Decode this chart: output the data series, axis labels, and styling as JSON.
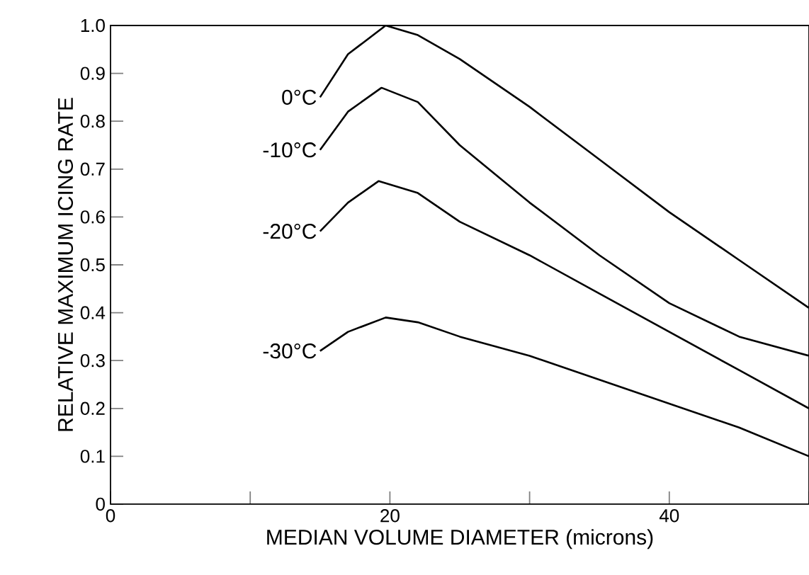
{
  "chart_data": {
    "type": "line",
    "xlabel": "MEDIAN VOLUME DIAMETER (microns)",
    "ylabel": "RELATIVE MAXIMUM ICING RATE",
    "xlim": [
      0,
      50
    ],
    "ylim": [
      0,
      1
    ],
    "xticks": [
      0,
      {
        "value": 10,
        "label": null
      },
      20,
      {
        "value": 30,
        "label": null
      },
      40,
      {
        "value": 50,
        "label": null
      }
    ],
    "yticks": [
      0,
      0.1,
      0.2,
      0.3,
      0.4,
      0.5,
      0.6,
      0.7,
      0.8,
      0.9,
      {
        "value": 1,
        "label": "1.0"
      }
    ],
    "grid": false,
    "legend": false,
    "marker": "none",
    "line_style": "solid",
    "series": [
      {
        "name": "0°C",
        "color": "#000000",
        "x": [
          15,
          17,
          19.7,
          22,
          25,
          30,
          35,
          40,
          45,
          50
        ],
        "values": [
          0.85,
          0.94,
          1.0,
          0.98,
          0.93,
          0.83,
          0.72,
          0.61,
          0.51,
          0.41
        ]
      },
      {
        "name": "-10°C",
        "color": "#000000",
        "x": [
          15,
          17,
          19.4,
          22,
          25,
          30,
          35,
          40,
          45,
          50
        ],
        "values": [
          0.74,
          0.82,
          0.87,
          0.84,
          0.75,
          0.63,
          0.52,
          0.42,
          0.35,
          0.31
        ]
      },
      {
        "name": "-20°C",
        "color": "#000000",
        "x": [
          15,
          17,
          19.2,
          22,
          25,
          30,
          35,
          40,
          45,
          50
        ],
        "values": [
          0.57,
          0.63,
          0.675,
          0.65,
          0.59,
          0.52,
          0.44,
          0.36,
          0.28,
          0.2
        ]
      },
      {
        "name": "-30°C",
        "color": "#000000",
        "x": [
          15,
          17,
          19.7,
          22,
          25,
          30,
          35,
          40,
          45,
          50
        ],
        "values": [
          0.32,
          0.36,
          0.39,
          0.38,
          0.35,
          0.31,
          0.26,
          0.21,
          0.16,
          0.1
        ]
      }
    ]
  }
}
